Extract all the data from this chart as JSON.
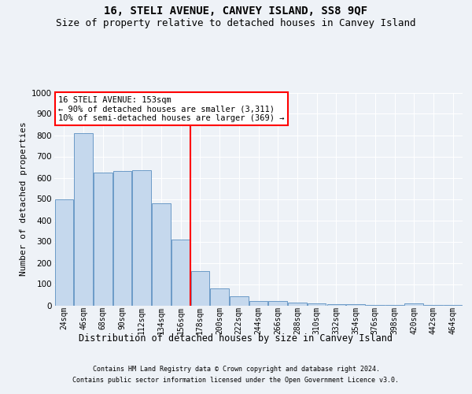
{
  "title": "16, STELI AVENUE, CANVEY ISLAND, SS8 9QF",
  "subtitle": "Size of property relative to detached houses in Canvey Island",
  "xlabel": "Distribution of detached houses by size in Canvey Island",
  "ylabel": "Number of detached properties",
  "footer_line1": "Contains HM Land Registry data © Crown copyright and database right 2024.",
  "footer_line2": "Contains public sector information licensed under the Open Government Licence v3.0.",
  "annotation_line1": "16 STELI AVENUE: 153sqm",
  "annotation_line2": "← 90% of detached houses are smaller (3,311)",
  "annotation_line3": "10% of semi-detached houses are larger (369) →",
  "bar_color": "#c5d8ed",
  "bar_edge_color": "#5a8fc0",
  "vline_color": "red",
  "vline_x": 6.5,
  "categories": [
    "24sqm",
    "46sqm",
    "68sqm",
    "90sqm",
    "112sqm",
    "134sqm",
    "156sqm",
    "178sqm",
    "200sqm",
    "222sqm",
    "244sqm",
    "266sqm",
    "288sqm",
    "310sqm",
    "332sqm",
    "354sqm",
    "376sqm",
    "398sqm",
    "420sqm",
    "442sqm",
    "464sqm"
  ],
  "values": [
    500,
    810,
    625,
    630,
    635,
    480,
    310,
    160,
    80,
    43,
    22,
    20,
    14,
    10,
    6,
    4,
    3,
    2,
    10,
    2,
    2
  ],
  "ylim": [
    0,
    1000
  ],
  "yticks": [
    0,
    100,
    200,
    300,
    400,
    500,
    600,
    700,
    800,
    900,
    1000
  ],
  "background_color": "#eef2f7",
  "plot_bg_color": "#eef2f7",
  "grid_color": "#ffffff",
  "title_fontsize": 10,
  "subtitle_fontsize": 9,
  "ylabel_fontsize": 8,
  "xlabel_fontsize": 8.5,
  "tick_fontsize": 7,
  "footer_fontsize": 6,
  "annotation_fontsize": 7.5
}
